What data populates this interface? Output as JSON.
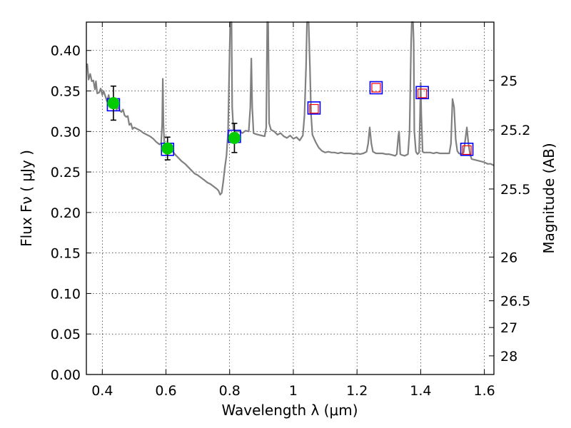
{
  "chart_data": {
    "type": "scatter",
    "xlabel": "Wavelength  λ (μm)",
    "ylabel": "Flux  Fν  ( μJy )",
    "y2label": "Magnitude (AB)",
    "xlim": [
      0.35,
      1.63
    ],
    "ylim": [
      0.0,
      0.435
    ],
    "grid": true,
    "x_ticks": [
      {
        "value": 0.4,
        "label": "0.4"
      },
      {
        "value": 0.6,
        "label": "0.6"
      },
      {
        "value": 0.8,
        "label": "0.8"
      },
      {
        "value": 1.0,
        "label": "1"
      },
      {
        "value": 1.2,
        "label": "1.2"
      },
      {
        "value": 1.4,
        "label": "1.4"
      },
      {
        "value": 1.6,
        "label": "1.6"
      }
    ],
    "y_ticks": [
      {
        "value": 0.0,
        "label": "0.00"
      },
      {
        "value": 0.05,
        "label": "0.05"
      },
      {
        "value": 0.1,
        "label": "0.10"
      },
      {
        "value": 0.15,
        "label": "0.15"
      },
      {
        "value": 0.2,
        "label": "0.20"
      },
      {
        "value": 0.25,
        "label": "0.25"
      },
      {
        "value": 0.3,
        "label": "0.30"
      },
      {
        "value": 0.35,
        "label": "0.35"
      },
      {
        "value": 0.4,
        "label": "0.40"
      }
    ],
    "y2_ticks": [
      {
        "flux": 0.363,
        "label": "25"
      },
      {
        "flux": 0.302,
        "label": "25.2"
      },
      {
        "flux": 0.229,
        "label": "25.5"
      },
      {
        "flux": 0.145,
        "label": "26"
      },
      {
        "flux": 0.091,
        "label": "26.5"
      },
      {
        "flux": 0.058,
        "label": "27"
      },
      {
        "flux": 0.023,
        "label": "28"
      }
    ],
    "series": [
      {
        "role": "template_sed",
        "color": "#808080",
        "points": [
          [
            0.35,
            0.382
          ],
          [
            0.353,
            0.383
          ],
          [
            0.357,
            0.364
          ],
          [
            0.362,
            0.371
          ],
          [
            0.367,
            0.362
          ],
          [
            0.372,
            0.363
          ],
          [
            0.377,
            0.352
          ],
          [
            0.38,
            0.362
          ],
          [
            0.384,
            0.347
          ],
          [
            0.39,
            0.348
          ],
          [
            0.395,
            0.353
          ],
          [
            0.4,
            0.345
          ],
          [
            0.404,
            0.35
          ],
          [
            0.41,
            0.343
          ],
          [
            0.415,
            0.337
          ],
          [
            0.42,
            0.345
          ],
          [
            0.425,
            0.334
          ],
          [
            0.43,
            0.338
          ],
          [
            0.435,
            0.33
          ],
          [
            0.44,
            0.333
          ],
          [
            0.445,
            0.327
          ],
          [
            0.45,
            0.33
          ],
          [
            0.455,
            0.326
          ],
          [
            0.46,
            0.324
          ],
          [
            0.465,
            0.327
          ],
          [
            0.47,
            0.32
          ],
          [
            0.475,
            0.318
          ],
          [
            0.48,
            0.319
          ],
          [
            0.485,
            0.308
          ],
          [
            0.49,
            0.31
          ],
          [
            0.495,
            0.303
          ],
          [
            0.5,
            0.305
          ],
          [
            0.51,
            0.303
          ],
          [
            0.52,
            0.301
          ],
          [
            0.53,
            0.298
          ],
          [
            0.54,
            0.296
          ],
          [
            0.55,
            0.294
          ],
          [
            0.56,
            0.291
          ],
          [
            0.57,
            0.287
          ],
          [
            0.58,
            0.284
          ],
          [
            0.585,
            0.286
          ],
          [
            0.588,
            0.31
          ],
          [
            0.59,
            0.365
          ],
          [
            0.592,
            0.31
          ],
          [
            0.595,
            0.283
          ],
          [
            0.6,
            0.28
          ],
          [
            0.61,
            0.279
          ],
          [
            0.62,
            0.276
          ],
          [
            0.63,
            0.271
          ],
          [
            0.64,
            0.267
          ],
          [
            0.65,
            0.263
          ],
          [
            0.66,
            0.26
          ],
          [
            0.67,
            0.256
          ],
          [
            0.68,
            0.252
          ],
          [
            0.69,
            0.248
          ],
          [
            0.7,
            0.246
          ],
          [
            0.71,
            0.243
          ],
          [
            0.72,
            0.24
          ],
          [
            0.73,
            0.237
          ],
          [
            0.74,
            0.235
          ],
          [
            0.75,
            0.232
          ],
          [
            0.76,
            0.229
          ],
          [
            0.765,
            0.227
          ],
          [
            0.77,
            0.222
          ],
          [
            0.775,
            0.224
          ],
          [
            0.78,
            0.238
          ],
          [
            0.785,
            0.256
          ],
          [
            0.79,
            0.27
          ],
          [
            0.795,
            0.3
          ],
          [
            0.8,
            0.398
          ],
          [
            0.802,
            0.435
          ],
          [
            0.806,
            0.435
          ],
          [
            0.808,
            0.33
          ],
          [
            0.812,
            0.302
          ],
          [
            0.82,
            0.3
          ],
          [
            0.83,
            0.3
          ],
          [
            0.84,
            0.298
          ],
          [
            0.85,
            0.301
          ],
          [
            0.86,
            0.3
          ],
          [
            0.865,
            0.33
          ],
          [
            0.868,
            0.39
          ],
          [
            0.871,
            0.33
          ],
          [
            0.875,
            0.298
          ],
          [
            0.88,
            0.297
          ],
          [
            0.89,
            0.296
          ],
          [
            0.9,
            0.295
          ],
          [
            0.91,
            0.294
          ],
          [
            0.915,
            0.305
          ],
          [
            0.918,
            0.435
          ],
          [
            0.921,
            0.435
          ],
          [
            0.924,
            0.31
          ],
          [
            0.93,
            0.302
          ],
          [
            0.94,
            0.3
          ],
          [
            0.95,
            0.296
          ],
          [
            0.96,
            0.298
          ],
          [
            0.97,
            0.294
          ],
          [
            0.98,
            0.292
          ],
          [
            0.99,
            0.295
          ],
          [
            1.0,
            0.291
          ],
          [
            1.01,
            0.293
          ],
          [
            1.02,
            0.289
          ],
          [
            1.03,
            0.295
          ],
          [
            1.035,
            0.32
          ],
          [
            1.04,
            0.38
          ],
          [
            1.043,
            0.435
          ],
          [
            1.048,
            0.435
          ],
          [
            1.052,
            0.38
          ],
          [
            1.056,
            0.32
          ],
          [
            1.06,
            0.296
          ],
          [
            1.07,
            0.287
          ],
          [
            1.08,
            0.28
          ],
          [
            1.09,
            0.276
          ],
          [
            1.1,
            0.274
          ],
          [
            1.11,
            0.275
          ],
          [
            1.12,
            0.274
          ],
          [
            1.13,
            0.274
          ],
          [
            1.14,
            0.273
          ],
          [
            1.15,
            0.274
          ],
          [
            1.16,
            0.273
          ],
          [
            1.17,
            0.273
          ],
          [
            1.18,
            0.273
          ],
          [
            1.19,
            0.272
          ],
          [
            1.2,
            0.273
          ],
          [
            1.21,
            0.272
          ],
          [
            1.22,
            0.273
          ],
          [
            1.23,
            0.275
          ],
          [
            1.235,
            0.285
          ],
          [
            1.24,
            0.305
          ],
          [
            1.245,
            0.285
          ],
          [
            1.25,
            0.275
          ],
          [
            1.26,
            0.273
          ],
          [
            1.27,
            0.273
          ],
          [
            1.28,
            0.273
          ],
          [
            1.29,
            0.272
          ],
          [
            1.3,
            0.272
          ],
          [
            1.31,
            0.271
          ],
          [
            1.32,
            0.27
          ],
          [
            1.325,
            0.272
          ],
          [
            1.33,
            0.295
          ],
          [
            1.332,
            0.3
          ],
          [
            1.336,
            0.272
          ],
          [
            1.34,
            0.271
          ],
          [
            1.35,
            0.27
          ],
          [
            1.36,
            0.272
          ],
          [
            1.365,
            0.3
          ],
          [
            1.37,
            0.41
          ],
          [
            1.372,
            0.435
          ],
          [
            1.376,
            0.435
          ],
          [
            1.378,
            0.41
          ],
          [
            1.38,
            0.3
          ],
          [
            1.385,
            0.275
          ],
          [
            1.39,
            0.272
          ],
          [
            1.395,
            0.274
          ],
          [
            1.398,
            0.32
          ],
          [
            1.4,
            0.36
          ],
          [
            1.402,
            0.32
          ],
          [
            1.406,
            0.275
          ],
          [
            1.41,
            0.274
          ],
          [
            1.42,
            0.274
          ],
          [
            1.43,
            0.274
          ],
          [
            1.44,
            0.273
          ],
          [
            1.45,
            0.274
          ],
          [
            1.46,
            0.273
          ],
          [
            1.47,
            0.273
          ],
          [
            1.48,
            0.273
          ],
          [
            1.49,
            0.273
          ],
          [
            1.495,
            0.285
          ],
          [
            1.5,
            0.34
          ],
          [
            1.505,
            0.33
          ],
          [
            1.51,
            0.29
          ],
          [
            1.515,
            0.276
          ],
          [
            1.52,
            0.273
          ],
          [
            1.53,
            0.272
          ],
          [
            1.535,
            0.274
          ],
          [
            1.54,
            0.29
          ],
          [
            1.545,
            0.305
          ],
          [
            1.55,
            0.285
          ],
          [
            1.555,
            0.272
          ],
          [
            1.56,
            0.266
          ],
          [
            1.57,
            0.265
          ],
          [
            1.58,
            0.264
          ],
          [
            1.59,
            0.263
          ],
          [
            1.6,
            0.262
          ],
          [
            1.61,
            0.26
          ],
          [
            1.62,
            0.26
          ],
          [
            1.63,
            0.258
          ]
        ]
      },
      {
        "role": "observed_flux",
        "color": "#00cc00",
        "x": [
          0.435,
          0.605,
          0.815
        ],
        "y": [
          0.335,
          0.279,
          0.292
        ],
        "yerr": [
          0.021,
          0.014,
          0.018
        ]
      },
      {
        "role": "model_flux_blue_squares",
        "color": "#0000ff",
        "x": [
          0.435,
          0.605,
          0.815,
          1.065,
          1.26,
          1.405,
          1.545
        ],
        "y": [
          0.333,
          0.278,
          0.294,
          0.329,
          0.354,
          0.348,
          0.278
        ]
      },
      {
        "role": "model_flux_red_squares",
        "color": "#ff0000",
        "x": [
          1.065,
          1.26,
          1.405,
          1.545
        ],
        "y": [
          0.328,
          0.354,
          0.347,
          0.277
        ]
      }
    ]
  }
}
